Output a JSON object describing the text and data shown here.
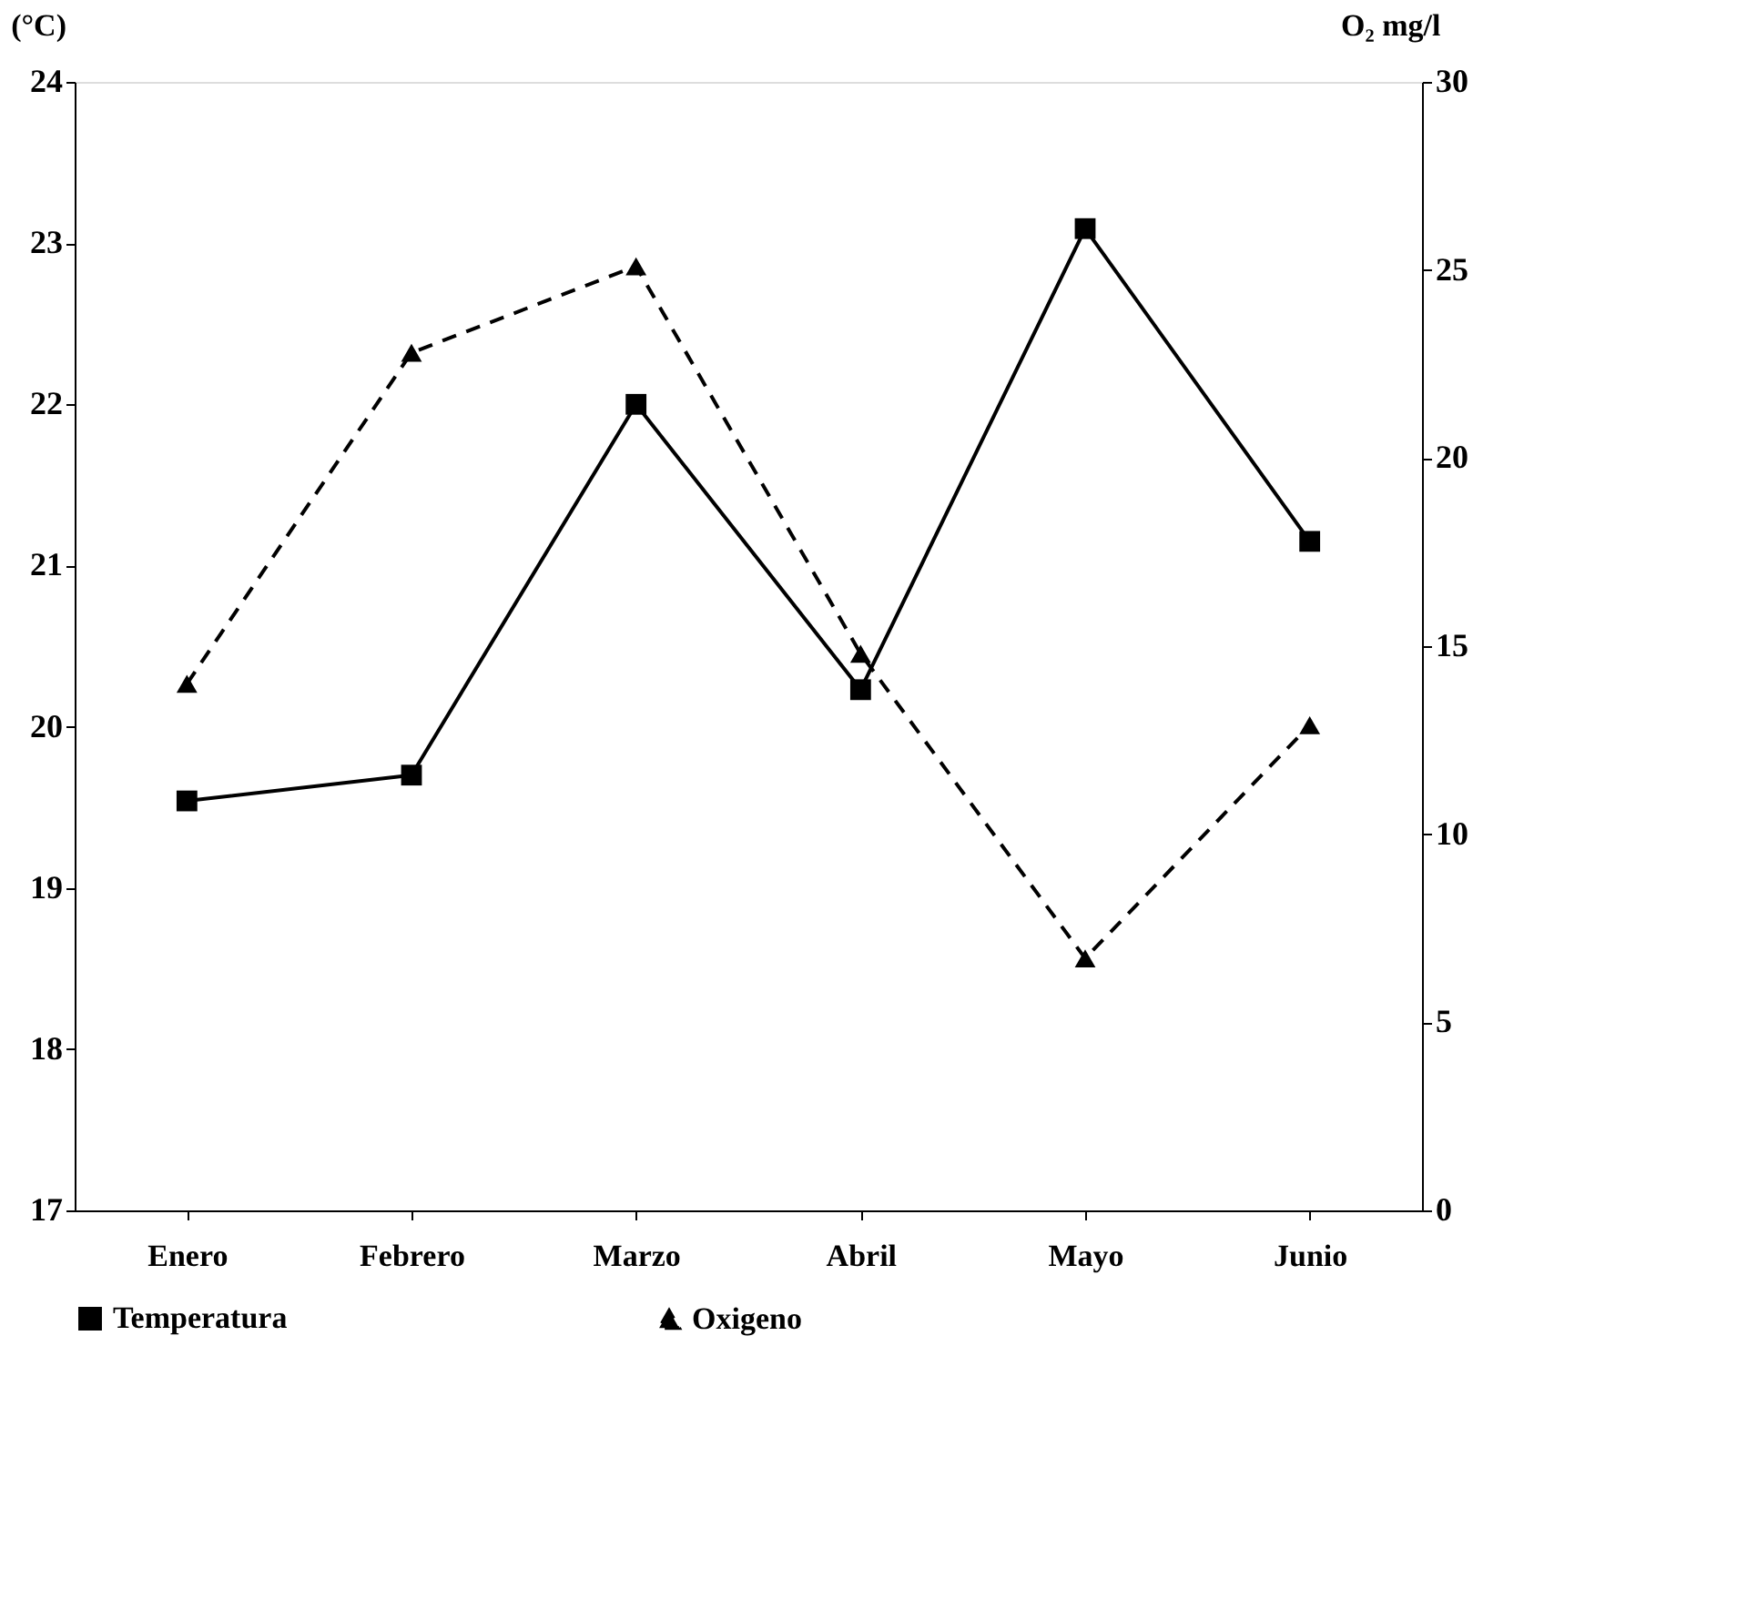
{
  "chart_data": {
    "type": "line",
    "ylabel": "(°C)",
    "y2label": "O₂ mg/l",
    "categories": [
      "Enero",
      "Febrero",
      "Marzo",
      "Abril",
      "Mayo",
      "Junio"
    ],
    "series": [
      {
        "name": "Temperatura",
        "color": "#000000",
        "marker": "square",
        "line_style": "solid",
        "values": [
          19.54,
          19.7,
          22.0,
          20.23,
          23.09,
          21.15
        ]
      },
      {
        "name": "Oxigeno",
        "color": "#000000",
        "marker": "triangle",
        "line_style": "dashed",
        "axis": "y2",
        "values": [
          14.0,
          22.8,
          25.1,
          14.8,
          6.7,
          12.9
        ]
      }
    ],
    "ylim": [
      17,
      24
    ],
    "yticks": [
      17,
      18,
      19,
      20,
      21,
      22,
      23,
      24
    ],
    "y2lim": [
      0,
      30
    ],
    "y2ticks": [
      0,
      5,
      10,
      15,
      20,
      25,
      30
    ],
    "grid": false,
    "legend": "bottom"
  }
}
